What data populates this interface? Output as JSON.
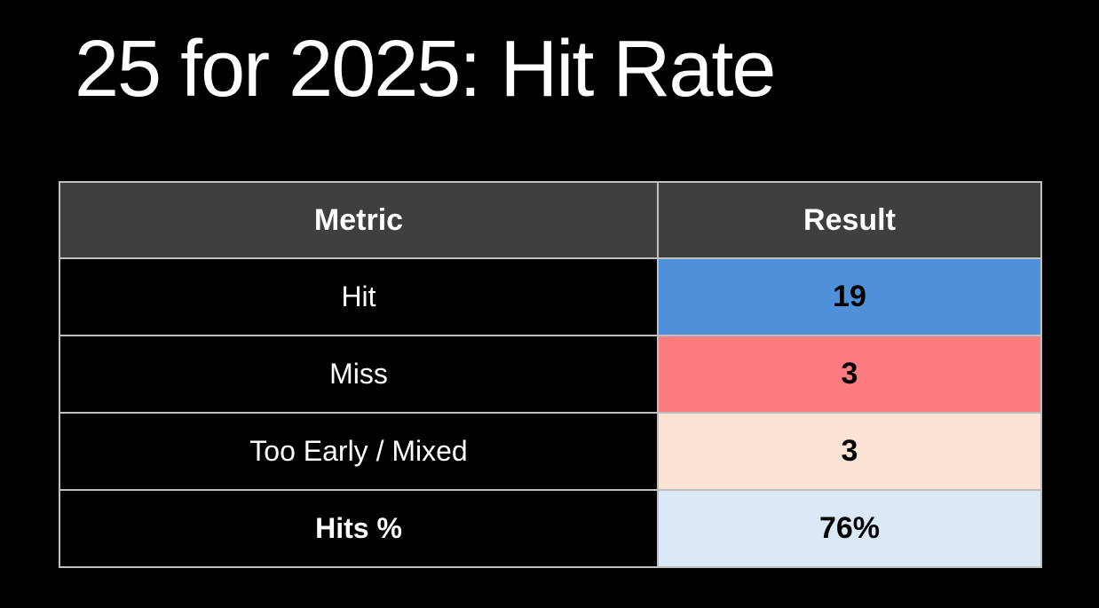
{
  "slide": {
    "title": "25 for 2025: Hit Rate",
    "background_color": "#000000",
    "title_color": "#FFFFFF"
  },
  "table": {
    "headers": [
      {
        "label": "Metric"
      },
      {
        "label": "Result"
      }
    ],
    "rows": [
      {
        "metric": "Hit",
        "result": "19",
        "result_bg": "#4E91D8",
        "metric_bold": false
      },
      {
        "metric": "Miss",
        "result": "3",
        "result_bg": "#FD7C80",
        "metric_bold": false
      },
      {
        "metric": "Too Early / Mixed",
        "result": "3",
        "result_bg": "#FBE3D5",
        "metric_bold": false
      },
      {
        "metric": "Hits %",
        "result": "76%",
        "result_bg": "#DBE9F7",
        "metric_bold": true
      }
    ],
    "colors": {
      "header_bg": "#3F3F3F",
      "header_text": "#FFFFFF",
      "metric_cell_bg": "#000000",
      "metric_cell_text": "#FFFFFF",
      "result_cell_text": "#000000",
      "border": "#BFBFBF"
    }
  },
  "chart_data": {
    "type": "table",
    "title": "25 for 2025: Hit Rate",
    "columns": [
      "Metric",
      "Result"
    ],
    "records": [
      {
        "Metric": "Hit",
        "Result": 19
      },
      {
        "Metric": "Miss",
        "Result": 3
      },
      {
        "Metric": "Too Early / Mixed",
        "Result": 3
      },
      {
        "Metric": "Hits %",
        "Result": "76%"
      }
    ]
  }
}
